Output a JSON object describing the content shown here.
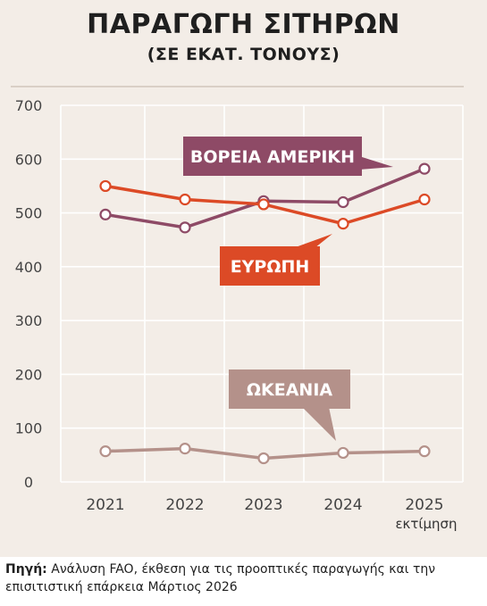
{
  "title": "ΠΑΡΑΓΩΓΗ ΣΙΤΗΡΩΝ",
  "subtitle": "(ΣΕ ΕΚΑΤ. ΤΟΝΟΥΣ)",
  "source_label": "Πηγή:",
  "source_text": "Ανάλυση FAO, έκθεση για τις προοπτικές παραγωγής και την επισιτιστική επάρκεια Μάρτιος 2026",
  "chart_data": {
    "type": "line",
    "x": [
      "2021",
      "2022",
      "2023",
      "2024",
      "2025"
    ],
    "x_note": "εκτίμηση",
    "ylim": [
      0,
      700
    ],
    "yticks": [
      0,
      100,
      200,
      300,
      400,
      500,
      600,
      700
    ],
    "grid": true,
    "series": [
      {
        "name": "ΒΟΡΕΙΑ ΑΜΕΡΙΚΗ",
        "color": "#8e4a66",
        "values": [
          497,
          473,
          522,
          520,
          582
        ]
      },
      {
        "name": "ΕΥΡΩΠΗ",
        "color": "#dc4a26",
        "values": [
          550,
          525,
          516,
          480,
          525
        ]
      },
      {
        "name": "ΩΚΕΑΝΙΑ",
        "color": "#b4918a",
        "values": [
          57,
          62,
          44,
          54,
          57
        ]
      }
    ]
  }
}
